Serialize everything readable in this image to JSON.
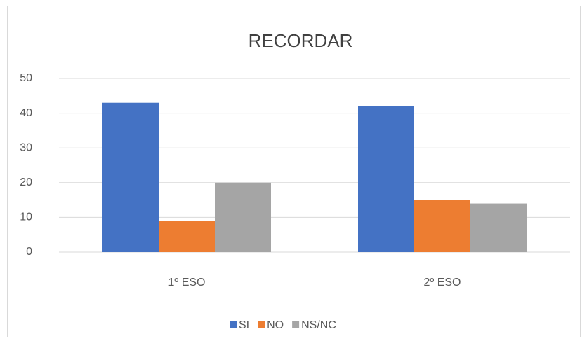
{
  "chart_data": {
    "type": "bar",
    "title": "RECORDAR",
    "categories": [
      "1º ESO",
      "2º ESO"
    ],
    "series": [
      {
        "name": "SI",
        "color": "#4472c4",
        "values": [
          43,
          42
        ]
      },
      {
        "name": "NO",
        "color": "#ed7d31",
        "values": [
          9,
          15
        ]
      },
      {
        "name": "NS/NC",
        "color": "#a5a5a5",
        "values": [
          20,
          14
        ]
      }
    ],
    "ylim": [
      0,
      50
    ],
    "yticks": [
      0,
      10,
      20,
      30,
      40,
      50
    ],
    "grid": true,
    "legend": "bottom"
  }
}
